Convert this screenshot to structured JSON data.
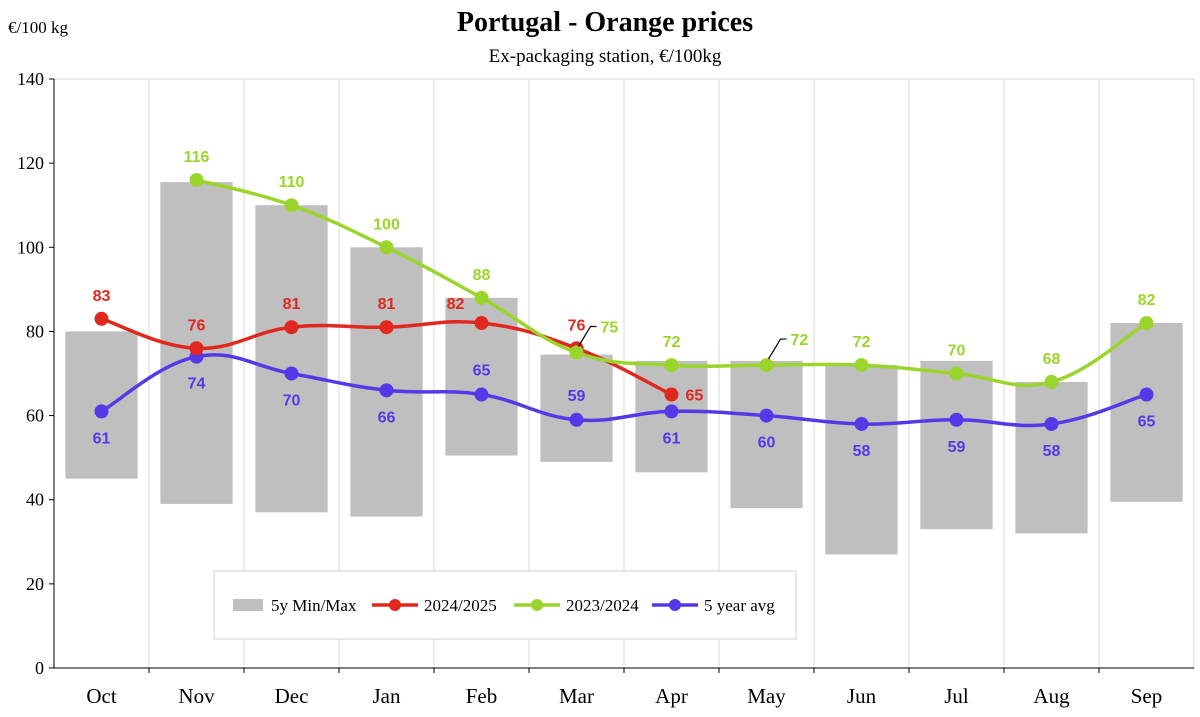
{
  "chart_data": {
    "type": "line",
    "title": "Portugal  -  Orange prices",
    "subtitle": "Ex-packaging  station, €/100kg",
    "ylabel": "€/100 kg",
    "xlabel": "",
    "ylim": [
      0,
      140
    ],
    "yticks": [
      0,
      20,
      40,
      60,
      80,
      100,
      120,
      140
    ],
    "grid": "vertical",
    "legend_position": "bottom-center",
    "categories": [
      "Oct",
      "Nov",
      "Dec",
      "Jan",
      "Feb",
      "Mar",
      "Apr",
      "May",
      "Jun",
      "Jul",
      "Aug",
      "Sep"
    ],
    "range_band": {
      "name": "5y Min/Max",
      "color": "#bfbfbf",
      "min": [
        45,
        39,
        37,
        36,
        50.5,
        49,
        46.5,
        38,
        27,
        33,
        32,
        39.5
      ],
      "max": [
        80,
        115.5,
        110,
        100,
        88,
        74.5,
        73,
        73,
        72,
        73,
        68,
        82
      ]
    },
    "series": [
      {
        "name": "2024/2025",
        "color": "#e0281e",
        "values": [
          83,
          76,
          81,
          81,
          82,
          76,
          65,
          null,
          null,
          null,
          null,
          null
        ],
        "labels": [
          "83",
          "76",
          "81",
          "81",
          "82",
          "76",
          "65",
          "",
          "",
          "",
          "",
          ""
        ]
      },
      {
        "name": "2023/2024",
        "color": "#99d52a",
        "values": [
          null,
          116,
          110,
          100,
          88,
          75,
          72,
          72,
          72,
          70,
          68,
          82
        ],
        "labels": [
          "",
          "116",
          "110",
          "100",
          "88",
          "75",
          "72",
          "72",
          "72",
          "70",
          "68",
          "82"
        ]
      },
      {
        "name": "5 year avg",
        "color": "#5539e8",
        "values": [
          61,
          74,
          70,
          66,
          65,
          59,
          61,
          60,
          58,
          59,
          58,
          65
        ],
        "labels": [
          "61",
          "74",
          "70",
          "66",
          "65",
          "59",
          "61",
          "60",
          "58",
          "59",
          "58",
          "65"
        ]
      }
    ]
  }
}
